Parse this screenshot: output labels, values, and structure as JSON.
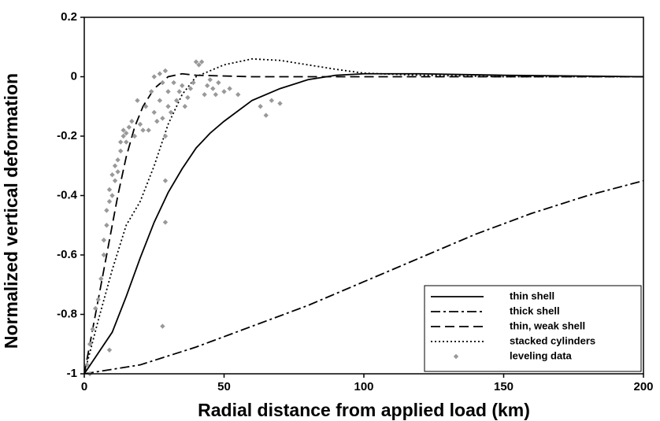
{
  "chart_data": {
    "type": "line",
    "x_label": "Radial distance from applied load (km)",
    "y_label": "Normalized vertical deformation",
    "xlim": [
      0,
      200
    ],
    "ylim": [
      -1,
      0.2
    ],
    "xticks": [
      0,
      50,
      100,
      150,
      200
    ],
    "yticks": [
      -1,
      -0.8,
      -0.6,
      -0.4,
      -0.2,
      0,
      0.2
    ],
    "legend": "lower right",
    "series": [
      {
        "name": "thin shell",
        "color": "#000000",
        "line_style": "solid",
        "x": [
          0,
          5,
          10,
          15,
          20,
          25,
          30,
          35,
          40,
          45,
          50,
          60,
          70,
          80,
          90,
          100,
          120,
          150,
          200
        ],
        "values": [
          -1,
          -0.93,
          -0.86,
          -0.74,
          -0.61,
          -0.49,
          -0.39,
          -0.31,
          -0.24,
          -0.19,
          -0.15,
          -0.08,
          -0.04,
          -0.01,
          0.005,
          0.01,
          0.01,
          0.005,
          0
        ]
      },
      {
        "name": "thick shell",
        "color": "#000000",
        "line_style": "dashdot",
        "x": [
          0,
          20,
          40,
          60,
          80,
          100,
          120,
          140,
          160,
          180,
          200
        ],
        "values": [
          -1,
          -0.97,
          -0.91,
          -0.84,
          -0.77,
          -0.69,
          -0.61,
          -0.53,
          -0.46,
          -0.4,
          -0.35
        ]
      },
      {
        "name": "thin, weak shell",
        "color": "#000000",
        "line_style": "dashed",
        "x": [
          0,
          3,
          6,
          9,
          12,
          15,
          18,
          21,
          25,
          30,
          35,
          40,
          60,
          100,
          200
        ],
        "values": [
          -1,
          -0.85,
          -0.7,
          -0.55,
          -0.4,
          -0.27,
          -0.17,
          -0.1,
          -0.04,
          0,
          0.01,
          0.005,
          0,
          0,
          0
        ]
      },
      {
        "name": "stacked cylinders",
        "color": "#000000",
        "line_style": "dotted",
        "x": [
          0,
          5,
          10,
          15,
          20,
          25,
          30,
          35,
          40,
          50,
          60,
          70,
          80,
          90,
          100,
          120,
          150,
          200
        ],
        "values": [
          -1,
          -0.82,
          -0.65,
          -0.5,
          -0.42,
          -0.3,
          -0.16,
          -0.06,
          0,
          0.04,
          0.06,
          0.055,
          0.04,
          0.025,
          0.012,
          0.005,
          0,
          0
        ]
      },
      {
        "name": "leveling data",
        "color": "#999999",
        "line_style": "markers",
        "x": [
          1,
          2,
          3,
          4,
          5,
          6,
          7,
          7,
          8,
          8,
          9,
          9,
          10,
          10,
          11,
          11,
          12,
          12,
          13,
          13,
          14,
          14,
          15,
          15,
          16,
          17,
          18,
          19,
          20,
          21,
          22,
          23,
          24,
          25,
          25,
          26,
          27,
          27,
          28,
          28,
          29,
          29,
          30,
          30,
          31,
          32,
          33,
          34,
          35,
          36,
          37,
          38,
          39,
          40,
          41,
          42,
          43,
          44,
          45,
          46,
          47,
          48,
          50,
          52,
          55,
          63,
          65,
          67,
          70,
          28,
          29,
          29,
          9,
          2
        ],
        "values": [
          -0.97,
          -0.9,
          -0.85,
          -0.78,
          -0.75,
          -0.68,
          -0.6,
          -0.55,
          -0.5,
          -0.45,
          -0.42,
          -0.38,
          -0.4,
          -0.33,
          -0.3,
          -0.35,
          -0.28,
          -0.32,
          -0.22,
          -0.25,
          -0.2,
          -0.18,
          -0.19,
          -0.22,
          -0.17,
          -0.15,
          -0.2,
          -0.08,
          -0.16,
          -0.18,
          -0.1,
          -0.18,
          -0.05,
          -0.12,
          0,
          -0.15,
          -0.08,
          0.01,
          -0.02,
          -0.14,
          0.02,
          -0.2,
          -0.1,
          -0.05,
          -0.12,
          -0.02,
          -0.08,
          -0.05,
          -0.03,
          -0.1,
          -0.07,
          -0.04,
          -0.02,
          0.05,
          0.04,
          0.05,
          -0.06,
          -0.03,
          -0.01,
          -0.04,
          -0.06,
          -0.02,
          -0.05,
          -0.04,
          -0.06,
          -0.1,
          -0.13,
          -0.08,
          -0.09,
          -0.84,
          -0.35,
          -0.49,
          -0.92,
          -1
        ]
      }
    ]
  }
}
